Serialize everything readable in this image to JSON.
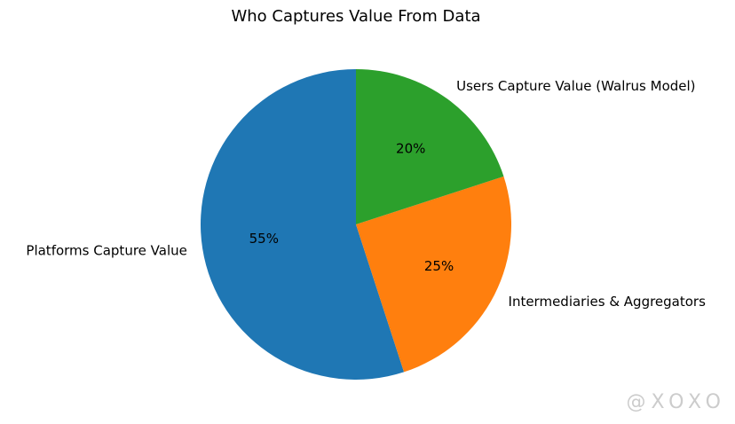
{
  "chart_data": {
    "type": "pie",
    "title": "Who Captures Value From Data",
    "categories": [
      "Platforms Capture Value",
      "Intermediaries & Aggregators",
      "Users Capture Value (Walrus Model)"
    ],
    "values": [
      55,
      25,
      20
    ],
    "value_labels": [
      "55%",
      "25%",
      "20%"
    ],
    "colors": [
      "#1f77b4",
      "#ff7f0e",
      "#2ca02c"
    ],
    "start_angle": 90,
    "counterclock": true
  },
  "watermark": "@XOXO"
}
